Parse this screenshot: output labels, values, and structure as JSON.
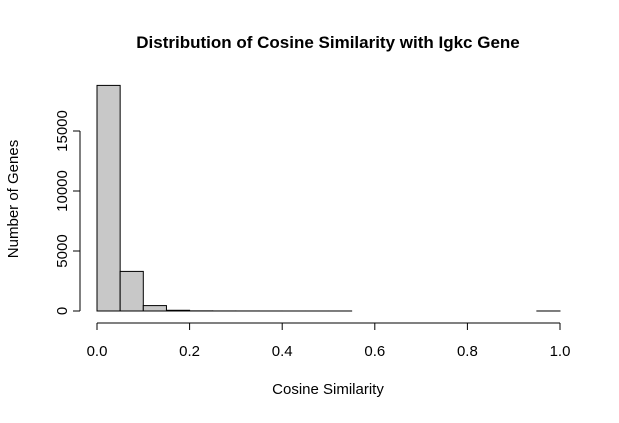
{
  "chart_data": {
    "type": "bar",
    "title": "Distribution of Cosine Similarity with Igkc Gene",
    "xlabel": "Cosine Similarity",
    "ylabel": "Number of Genes",
    "xlim": [
      0,
      1
    ],
    "ylim": [
      0,
      18800
    ],
    "bin_width": 0.05,
    "bins": [
      {
        "x0": 0.0,
        "x1": 0.05,
        "count": 18800
      },
      {
        "x0": 0.05,
        "x1": 0.1,
        "count": 3300
      },
      {
        "x0": 0.1,
        "x1": 0.15,
        "count": 450
      },
      {
        "x0": 0.15,
        "x1": 0.2,
        "count": 60
      },
      {
        "x0": 0.2,
        "x1": 0.25,
        "count": 12
      },
      {
        "x0": 0.25,
        "x1": 0.3,
        "count": 5
      },
      {
        "x0": 0.3,
        "x1": 0.35,
        "count": 3
      },
      {
        "x0": 0.35,
        "x1": 0.4,
        "count": 2
      },
      {
        "x0": 0.4,
        "x1": 0.45,
        "count": 1
      },
      {
        "x0": 0.45,
        "x1": 0.5,
        "count": 1
      },
      {
        "x0": 0.5,
        "x1": 0.55,
        "count": 1
      },
      {
        "x0": 0.55,
        "x1": 0.6,
        "count": 0
      },
      {
        "x0": 0.6,
        "x1": 0.65,
        "count": 0
      },
      {
        "x0": 0.65,
        "x1": 0.7,
        "count": 0
      },
      {
        "x0": 0.7,
        "x1": 0.75,
        "count": 0
      },
      {
        "x0": 0.75,
        "x1": 0.8,
        "count": 0
      },
      {
        "x0": 0.8,
        "x1": 0.85,
        "count": 0
      },
      {
        "x0": 0.85,
        "x1": 0.9,
        "count": 0
      },
      {
        "x0": 0.9,
        "x1": 0.95,
        "count": 0
      },
      {
        "x0": 0.95,
        "x1": 1.0,
        "count": 1
      }
    ],
    "x_ticks": [
      0,
      0.2,
      0.4,
      0.6,
      0.8,
      1.0
    ],
    "x_tick_labels": [
      "0.0",
      "0.2",
      "0.4",
      "0.6",
      "0.8",
      "1.0"
    ],
    "y_ticks": [
      0,
      5000,
      10000,
      15000
    ],
    "y_tick_labels": [
      "0",
      "5000",
      "10000",
      "15000"
    ],
    "grid": false,
    "legend": "none",
    "colors": {
      "bar_fill": "#c8c8c8",
      "bar_stroke": "#000000",
      "axis": "#000000"
    }
  }
}
